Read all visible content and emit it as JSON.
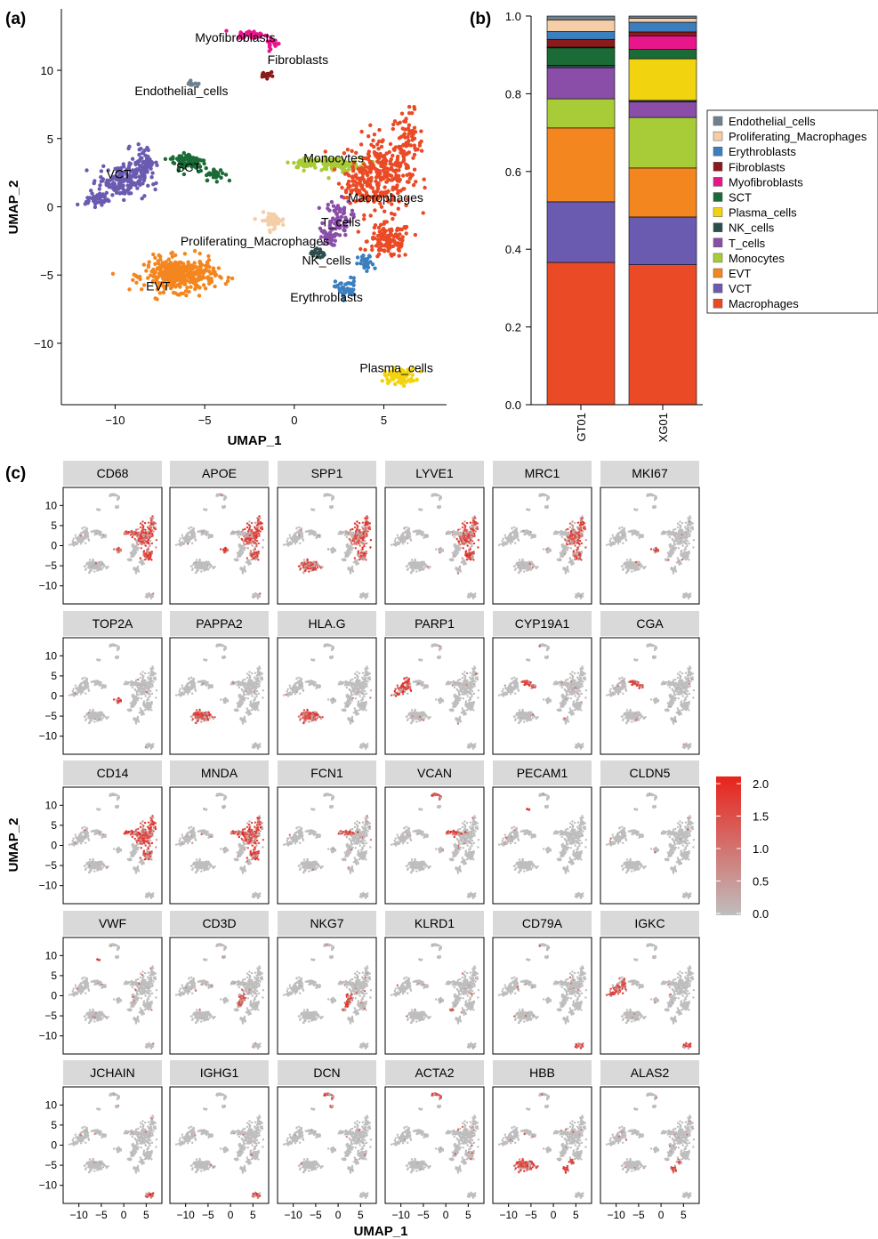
{
  "panel_labels": {
    "a": "(a)",
    "b": "(b)",
    "c": "(c)"
  },
  "chart_data": [
    {
      "type": "scatter",
      "panel": "(a)",
      "xlabel": "UMAP_1",
      "ylabel": "UMAP_2",
      "xlim": [
        -13,
        8.5
      ],
      "ylim": [
        -14.5,
        14.5
      ],
      "xticks": [
        -10,
        -5,
        0,
        5
      ],
      "yticks": [
        -10,
        -5,
        0,
        5,
        10
      ],
      "grid": false,
      "clusters": [
        {
          "name": "Myofibroblasts",
          "color": "#e7168b",
          "label_x": -3.3,
          "label_y": 12.4
        },
        {
          "name": "Fibroblasts",
          "color": "#8b1a1a",
          "label_x": 0.2,
          "label_y": 10.8
        },
        {
          "name": "Endothelial_cells",
          "color": "#6f8190",
          "label_x": -6.3,
          "label_y": 8.5
        },
        {
          "name": "SCT",
          "color": "#1b6b36",
          "label_x": -5.9,
          "label_y": 2.9
        },
        {
          "name": "VCT",
          "color": "#6b5bb0",
          "label_x": -9.8,
          "label_y": 2.4
        },
        {
          "name": "Monocytes",
          "color": "#a8cc38",
          "label_x": 2.2,
          "label_y": 3.6
        },
        {
          "name": "Macrophages",
          "color": "#ea4a25",
          "label_x": 5.1,
          "label_y": 0.7
        },
        {
          "name": "T_cells",
          "color": "#8a4ea8",
          "label_x": 2.6,
          "label_y": -1.1
        },
        {
          "name": "Proliferating_Macrophages",
          "color": "#f5cda6",
          "label_x": -2.2,
          "label_y": -2.5
        },
        {
          "name": "NK_cells",
          "color": "#2d4d4d",
          "label_x": 1.8,
          "label_y": -3.9
        },
        {
          "name": "EVT",
          "color": "#f3861f",
          "label_x": -7.6,
          "label_y": -5.8
        },
        {
          "name": "Erythroblasts",
          "color": "#3b7fbf",
          "label_x": 1.8,
          "label_y": -6.6
        },
        {
          "name": "Plasma_cells",
          "color": "#f2d30f",
          "label_x": 5.7,
          "label_y": -11.8
        }
      ]
    },
    {
      "type": "bar",
      "stacked": true,
      "panel": "(b)",
      "categories": [
        "GT01",
        "XG01"
      ],
      "ylim": [
        0,
        1
      ],
      "yticks": [
        0.0,
        0.2,
        0.4,
        0.6,
        0.8,
        1.0
      ],
      "legend_position": "right",
      "legend": [
        "Endothelial_cells",
        "Proliferating_Macrophages",
        "Erythroblasts",
        "Fibroblasts",
        "Myofibroblasts",
        "SCT",
        "Plasma_cells",
        "NK_cells",
        "T_cells",
        "Monocytes",
        "EVT",
        "VCT",
        "Macrophages"
      ],
      "series": [
        {
          "name": "Macrophages",
          "color": "#ea4a25",
          "values": [
            0.366,
            0.36
          ]
        },
        {
          "name": "VCT",
          "color": "#6b5bb0",
          "values": [
            0.156,
            0.123
          ]
        },
        {
          "name": "EVT",
          "color": "#f3861f",
          "values": [
            0.19,
            0.126
          ]
        },
        {
          "name": "Monocytes",
          "color": "#a8cc38",
          "values": [
            0.075,
            0.13
          ]
        },
        {
          "name": "T_cells",
          "color": "#8a4ea8",
          "values": [
            0.08,
            0.04
          ]
        },
        {
          "name": "NK_cells",
          "color": "#2d4d4d",
          "values": [
            0.006,
            0.004
          ]
        },
        {
          "name": "Plasma_cells",
          "color": "#f2d30f",
          "values": [
            0.0,
            0.107
          ]
        },
        {
          "name": "SCT",
          "color": "#1b6b36",
          "values": [
            0.045,
            0.024
          ]
        },
        {
          "name": "Myofibroblasts",
          "color": "#e7168b",
          "values": [
            0.002,
            0.035
          ]
        },
        {
          "name": "Fibroblasts",
          "color": "#8b1a1a",
          "values": [
            0.02,
            0.01
          ]
        },
        {
          "name": "Erythroblasts",
          "color": "#3b7fbf",
          "values": [
            0.02,
            0.025
          ]
        },
        {
          "name": "Proliferating_Macrophages",
          "color": "#f5cda6",
          "values": [
            0.03,
            0.01
          ]
        },
        {
          "name": "Endothelial_cells",
          "color": "#6f8190",
          "values": [
            0.01,
            0.006
          ]
        }
      ]
    },
    {
      "type": "scatter",
      "panel": "(c)",
      "xlabel": "UMAP_1",
      "ylabel": "UMAP_2",
      "xticks": [
        -10,
        -5,
        0,
        5
      ],
      "yticks": [
        -10,
        -5,
        0,
        5,
        10
      ],
      "color_scale": {
        "min": 0.0,
        "max": 2.0,
        "ticks": [
          "2.0",
          "1.5",
          "1.0",
          "0.5",
          "0.0"
        ],
        "low_color": "#bebebe",
        "high_color": "#e8231b"
      },
      "genes": [
        {
          "name": "CD68",
          "clusters": [
            "Macrophages",
            "Monocytes",
            "Proliferating_Macrophages"
          ]
        },
        {
          "name": "APOE",
          "clusters": [
            "Macrophages",
            "Proliferating_Macrophages"
          ]
        },
        {
          "name": "SPP1",
          "clusters": [
            "Macrophages",
            "EVT"
          ]
        },
        {
          "name": "LYVE1",
          "clusters": [
            "Macrophages"
          ]
        },
        {
          "name": "MRC1",
          "clusters": [
            "Macrophages"
          ]
        },
        {
          "name": "MKI67",
          "clusters": [
            "Proliferating_Macrophages"
          ]
        },
        {
          "name": "TOP2A",
          "clusters": [
            "Proliferating_Macrophages"
          ]
        },
        {
          "name": "PAPPA2",
          "clusters": [
            "EVT"
          ]
        },
        {
          "name": "HLA.G",
          "clusters": [
            "EVT"
          ]
        },
        {
          "name": "PARP1",
          "clusters": [
            "VCT"
          ]
        },
        {
          "name": "CYP19A1",
          "clusters": [
            "SCT"
          ]
        },
        {
          "name": "CGA",
          "clusters": [
            "SCT"
          ]
        },
        {
          "name": "CD14",
          "clusters": [
            "Macrophages",
            "Monocytes"
          ]
        },
        {
          "name": "MNDA",
          "clusters": [
            "Macrophages",
            "Monocytes"
          ]
        },
        {
          "name": "FCN1",
          "clusters": [
            "Monocytes"
          ]
        },
        {
          "name": "VCAN",
          "clusters": [
            "Monocytes",
            "Myofibroblasts"
          ]
        },
        {
          "name": "PECAM1",
          "clusters": [
            "Endothelial_cells"
          ]
        },
        {
          "name": "CLDN5",
          "clusters": []
        },
        {
          "name": "VWF",
          "clusters": [
            "Endothelial_cells"
          ]
        },
        {
          "name": "CD3D",
          "clusters": [
            "T_cells"
          ]
        },
        {
          "name": "NKG7",
          "clusters": [
            "NK_cells",
            "T_cells"
          ]
        },
        {
          "name": "KLRD1",
          "clusters": [
            "NK_cells"
          ]
        },
        {
          "name": "CD79A",
          "clusters": [
            "Plasma_cells"
          ]
        },
        {
          "name": "IGKC",
          "clusters": [
            "Plasma_cells",
            "VCT"
          ]
        },
        {
          "name": "JCHAIN",
          "clusters": [
            "Plasma_cells"
          ]
        },
        {
          "name": "IGHG1",
          "clusters": [
            "Plasma_cells"
          ]
        },
        {
          "name": "DCN",
          "clusters": [
            "Myofibroblasts",
            "Fibroblasts"
          ]
        },
        {
          "name": "ACTA2",
          "clusters": [
            "Myofibroblasts"
          ]
        },
        {
          "name": "HBB",
          "clusters": [
            "Erythroblasts",
            "EVT"
          ]
        },
        {
          "name": "ALAS2",
          "clusters": [
            "Erythroblasts"
          ]
        }
      ]
    }
  ]
}
